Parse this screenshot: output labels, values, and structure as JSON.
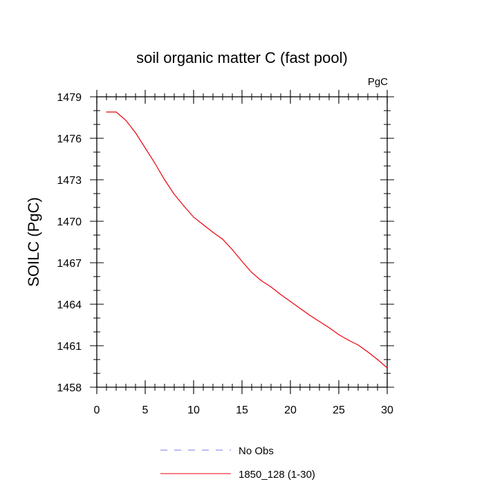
{
  "chart_data": {
    "type": "line",
    "title": "soil organic matter C (fast pool)",
    "units_label": "PgC",
    "ylabel": "SOILC  (PgC)",
    "xlabel": "",
    "xlim": [
      0,
      30
    ],
    "ylim": [
      1458,
      1479
    ],
    "x_major_ticks": [
      0,
      5,
      10,
      15,
      20,
      25,
      30
    ],
    "x_tick_labels": [
      "0",
      "5",
      "10",
      "15",
      "20",
      "25",
      "30"
    ],
    "x_minor_step": 1,
    "y_major_ticks": [
      1458,
      1461,
      1464,
      1467,
      1470,
      1473,
      1476,
      1479
    ],
    "y_tick_labels": [
      "1458",
      "1461",
      "1464",
      "1467",
      "1470",
      "1473",
      "1476",
      "1479"
    ],
    "y_minor_step": 1,
    "grid": false,
    "legend_position": "bottom",
    "series": [
      {
        "name": "1850_128 (1-30)",
        "color": "#e8000b",
        "dash": "solid",
        "x": [
          1,
          2,
          3,
          4,
          5,
          6,
          7,
          8,
          9,
          10,
          11,
          12,
          13,
          14,
          15,
          16,
          17,
          18,
          19,
          20,
          21,
          22,
          23,
          24,
          25,
          26,
          27,
          28,
          29,
          30
        ],
        "y": [
          1477.9,
          1477.9,
          1477.3,
          1476.4,
          1475.3,
          1474.2,
          1473.0,
          1471.95,
          1471.1,
          1470.3,
          1469.75,
          1469.2,
          1468.7,
          1467.95,
          1467.1,
          1466.3,
          1465.7,
          1465.25,
          1464.7,
          1464.2,
          1463.7,
          1463.2,
          1462.75,
          1462.3,
          1461.8,
          1461.4,
          1461.05,
          1460.55,
          1460.0,
          1459.4
        ]
      }
    ],
    "legend": [
      {
        "name": "No Obs",
        "color": "#7777ee",
        "dash": "dashed"
      },
      {
        "name": "1850_128 (1-30)",
        "color": "#e8000b",
        "dash": "solid"
      }
    ]
  }
}
